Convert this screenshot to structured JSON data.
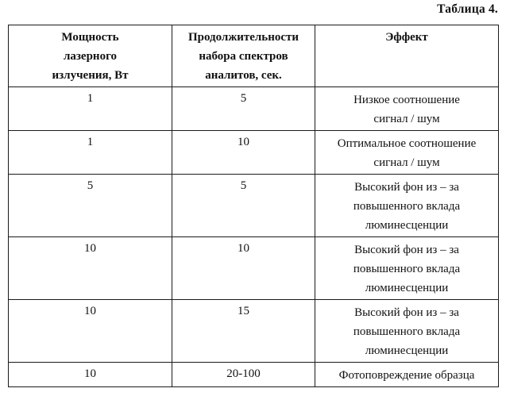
{
  "caption": "Таблица 4.",
  "table": {
    "headers": [
      [
        "Мощность",
        "лазерного",
        "излучения, Вт"
      ],
      [
        "Продолжительности",
        "набора спектров",
        "аналитов, сек."
      ],
      [
        "Эффект"
      ]
    ],
    "rows": [
      {
        "power": "1",
        "duration": "5",
        "effect": [
          "Низкое соотношение",
          "сигнал / шум"
        ]
      },
      {
        "power": "1",
        "duration": "10",
        "effect": [
          "Оптимальное соотношение",
          "сигнал / шум"
        ]
      },
      {
        "power": "5",
        "duration": "5",
        "effect": [
          "Высокий фон из – за",
          "повышенного вклада",
          "люминесценции"
        ]
      },
      {
        "power": "10",
        "duration": "10",
        "effect": [
          "Высокий фон из – за",
          "повышенного вклада",
          "люминесценции"
        ]
      },
      {
        "power": "10",
        "duration": "15",
        "effect": [
          "Высокий фон из – за",
          "повышенного вклада",
          "люминесценции"
        ]
      },
      {
        "power": "10",
        "duration": "20-100",
        "effect": [
          "Фотоповреждение образца"
        ]
      }
    ]
  }
}
